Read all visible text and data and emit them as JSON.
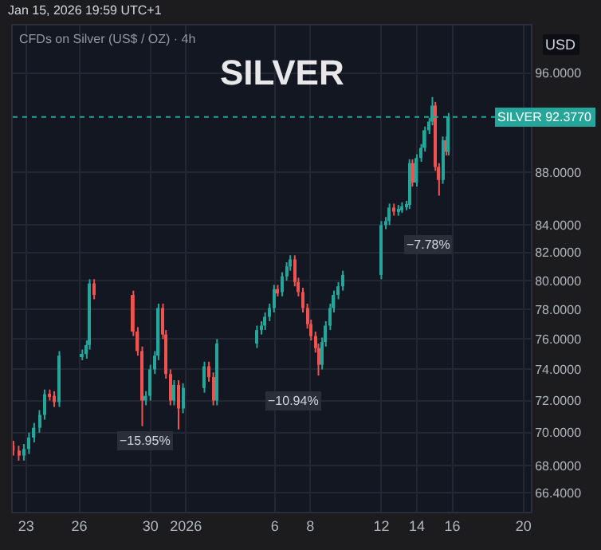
{
  "chart_data": {
    "type": "candlestick",
    "title": "SILVER",
    "subtitle": "CFDs on Silver (US$ / OZ) · 4h",
    "annotations": [
      "Jan 15, 2026 19:59 UTC+1",
      "USD",
      "−15.95%",
      "−10.94%",
      "−7.78%"
    ],
    "x": [
      "2025-12-22T07:00",
      "2025-12-22T14:00",
      "2025-12-22T21:00",
      "2025-12-23T04:00",
      "2025-12-23T11:00",
      "2025-12-23T18:00",
      "2025-12-24T01:00",
      "2025-12-24T08:00",
      "2025-12-24T14:00",
      "2025-12-24T21:00",
      "2025-12-26T04:00",
      "2025-12-26T10:00",
      "2025-12-26T14:00",
      "2025-12-26T20:00",
      "2025-12-29T01:00",
      "2025-12-29T07:00",
      "2025-12-29T13:00",
      "2025-12-29T18:00",
      "2025-12-30T00:00",
      "2025-12-30T06:00",
      "2025-12-30T11:00",
      "2025-12-30T17:00",
      "2025-12-30T21:00",
      "2025-12-31T03:00",
      "2025-12-31T08:00",
      "2025-12-31T14:00",
      "2025-12-31T20:00",
      "2026-01-02T01:00",
      "2026-01-02T07:00",
      "2026-01-02T13:00",
      "2026-01-02T18:00",
      "2026-01-05T00:00",
      "2026-01-05T06:00",
      "2026-01-05T11:00",
      "2026-01-05T17:00",
      "2026-01-05T23:00",
      "2026-01-06T04:00",
      "2026-01-06T10:00",
      "2026-01-06T16:00",
      "2026-01-06T21:00",
      "2026-01-07T03:00",
      "2026-01-07T08:00",
      "2026-01-07T14:00",
      "2026-01-07T20:00",
      "2026-01-08T01:00",
      "2026-01-08T07:00",
      "2026-01-08T11:00",
      "2026-01-08T16:00",
      "2026-01-08T21:00",
      "2026-01-09T03:00",
      "2026-01-09T08:00",
      "2026-01-09T14:00",
      "2026-01-09T20:00",
      "2026-01-12T00:00",
      "2026-01-12T06:00",
      "2026-01-12T11:00",
      "2026-01-12T17:00",
      "2026-01-12T23:00",
      "2026-01-13T04:00",
      "2026-01-13T10:00",
      "2026-01-13T14:00",
      "2026-01-13T18:00",
      "2026-01-14T00:00",
      "2026-01-14T06:00",
      "2026-01-14T11:00",
      "2026-01-14T17:00",
      "2026-01-14T21:00",
      "2026-01-15T01:00",
      "2026-01-15T06:00",
      "2026-01-15T11:00",
      "2026-01-15T16:00",
      "2026-01-15T19:00"
    ],
    "ohlc": [
      [
        69.2,
        69.5,
        68.6,
        68.9
      ],
      [
        68.9,
        69.2,
        68.3,
        68.6
      ],
      [
        68.6,
        69.3,
        68.3,
        69.0
      ],
      [
        69.0,
        70.0,
        68.7,
        69.7
      ],
      [
        69.7,
        70.6,
        69.4,
        70.3
      ],
      [
        70.3,
        71.4,
        70.0,
        71.1
      ],
      [
        71.1,
        72.7,
        70.8,
        72.4
      ],
      [
        72.4,
        72.7,
        72.0,
        72.3
      ],
      [
        72.3,
        72.6,
        71.6,
        71.9
      ],
      [
        71.9,
        75.2,
        71.6,
        74.9
      ],
      [
        74.9,
        75.3,
        74.6,
        75.0
      ],
      [
        75.0,
        75.9,
        74.7,
        75.6
      ],
      [
        75.6,
        80.1,
        75.3,
        79.8
      ],
      [
        79.8,
        80.1,
        78.7,
        79.0
      ],
      [
        79.0,
        79.3,
        76.2,
        76.5
      ],
      [
        76.5,
        76.8,
        74.9,
        75.2
      ],
      [
        75.2,
        75.5,
        70.4,
        72.0
      ],
      [
        72.0,
        72.6,
        71.7,
        72.3
      ],
      [
        72.3,
        74.3,
        72.0,
        74.0
      ],
      [
        74.0,
        75.2,
        73.7,
        74.9
      ],
      [
        74.9,
        78.4,
        74.6,
        78.1
      ],
      [
        78.1,
        78.4,
        76.0,
        76.3
      ],
      [
        76.3,
        76.6,
        73.4,
        73.7
      ],
      [
        73.7,
        74.0,
        71.7,
        72.0
      ],
      [
        72.0,
        73.3,
        71.7,
        73.0
      ],
      [
        73.0,
        73.3,
        70.2,
        71.5
      ],
      [
        71.5,
        73.1,
        71.2,
        72.8
      ],
      [
        72.8,
        74.5,
        72.5,
        74.2
      ],
      [
        74.2,
        74.5,
        73.2,
        73.5
      ],
      [
        73.5,
        73.8,
        71.7,
        72.0
      ],
      [
        72.0,
        76.0,
        71.7,
        75.7
      ],
      [
        75.7,
        76.9,
        75.4,
        76.6
      ],
      [
        76.6,
        77.2,
        76.3,
        76.9
      ],
      [
        76.9,
        77.8,
        76.6,
        77.5
      ],
      [
        77.5,
        78.4,
        77.2,
        78.1
      ],
      [
        78.1,
        79.7,
        77.8,
        79.4
      ],
      [
        79.4,
        79.7,
        78.9,
        79.2
      ],
      [
        79.2,
        80.6,
        78.9,
        80.3
      ],
      [
        80.3,
        81.3,
        80.0,
        81.0
      ],
      [
        81.0,
        81.8,
        80.7,
        81.5
      ],
      [
        81.5,
        81.8,
        79.6,
        79.9
      ],
      [
        79.9,
        80.2,
        78.9,
        79.2
      ],
      [
        79.2,
        79.5,
        77.8,
        78.1
      ],
      [
        78.1,
        78.4,
        76.7,
        77.0
      ],
      [
        77.0,
        77.3,
        75.9,
        76.2
      ],
      [
        76.2,
        76.5,
        75.1,
        75.4
      ],
      [
        75.4,
        75.7,
        73.6,
        74.3
      ],
      [
        74.3,
        76.1,
        74.0,
        75.8
      ],
      [
        75.8,
        77.2,
        75.5,
        76.9
      ],
      [
        76.9,
        78.4,
        76.6,
        78.1
      ],
      [
        78.1,
        79.3,
        77.8,
        79.0
      ],
      [
        79.0,
        79.9,
        78.7,
        79.6
      ],
      [
        79.6,
        80.7,
        79.3,
        80.4
      ],
      [
        80.4,
        84.3,
        80.1,
        84.0
      ],
      [
        84.0,
        84.6,
        83.7,
        84.3
      ],
      [
        84.3,
        85.6,
        84.0,
        85.3
      ],
      [
        85.3,
        85.6,
        84.7,
        85.0
      ],
      [
        85.0,
        85.5,
        84.7,
        85.2
      ],
      [
        85.2,
        85.7,
        84.9,
        85.4
      ],
      [
        85.4,
        85.8,
        85.1,
        85.5
      ],
      [
        85.5,
        89.0,
        85.2,
        88.7
      ],
      [
        88.7,
        89.0,
        86.9,
        87.2
      ],
      [
        87.2,
        89.4,
        86.9,
        89.1
      ],
      [
        89.1,
        90.2,
        88.8,
        89.9
      ],
      [
        89.9,
        91.6,
        89.6,
        91.3
      ],
      [
        91.3,
        92.3,
        91.0,
        92.0
      ],
      [
        92.0,
        94.0,
        91.7,
        93.3
      ],
      [
        93.3,
        93.6,
        88.1,
        88.4
      ],
      [
        88.4,
        88.7,
        86.2,
        87.4
      ],
      [
        87.4,
        90.8,
        87.1,
        90.5
      ],
      [
        90.5,
        90.8,
        89.3,
        89.6
      ],
      [
        89.6,
        92.7,
        89.3,
        92.377
      ]
    ],
    "colors": [
      "#ef5350",
      "#ef5350",
      "#26a69a",
      "#26a69a",
      "#26a69a",
      "#26a69a",
      "#26a69a",
      "#ef5350",
      "#ef5350",
      "#26a69a",
      "#26a69a",
      "#26a69a",
      "#26a69a",
      "#ef5350",
      "#ef5350",
      "#ef5350",
      "#ef5350",
      "#26a69a",
      "#26a69a",
      "#26a69a",
      "#26a69a",
      "#ef5350",
      "#ef5350",
      "#ef5350",
      "#26a69a",
      "#ef5350",
      "#26a69a",
      "#26a69a",
      "#ef5350",
      "#ef5350",
      "#26a69a",
      "#26a69a",
      "#26a69a",
      "#26a69a",
      "#26a69a",
      "#26a69a",
      "#ef5350",
      "#26a69a",
      "#26a69a",
      "#26a69a",
      "#ef5350",
      "#ef5350",
      "#ef5350",
      "#ef5350",
      "#ef5350",
      "#ef5350",
      "#ef5350",
      "#26a69a",
      "#26a69a",
      "#26a69a",
      "#26a69a",
      "#26a69a",
      "#26a69a",
      "#26a69a",
      "#26a69a",
      "#26a69a",
      "#ef5350",
      "#26a69a",
      "#26a69a",
      "#26a69a",
      "#26a69a",
      "#ef5350",
      "#26a69a",
      "#26a69a",
      "#26a69a",
      "#26a69a",
      "#26a69a",
      "#ef5350",
      "#ef5350",
      "#26a69a",
      "#ef5350",
      "#26a69a"
    ],
    "log": true,
    "xlim": [
      "2025-12-22T06:00",
      "2026-01-20T10:00"
    ],
    "xticks": [
      {
        "value": "2025-12-23",
        "label": "23"
      },
      {
        "value": "2025-12-26",
        "label": "26"
      },
      {
        "value": "2025-12-30",
        "label": "30"
      },
      {
        "value": "2026-01-01",
        "label": "2026"
      },
      {
        "value": "2026-01-06",
        "label": "6"
      },
      {
        "value": "2026-01-08",
        "label": "8"
      },
      {
        "value": "2026-01-12",
        "label": "12"
      },
      {
        "value": "2026-01-14",
        "label": "14"
      },
      {
        "value": "2026-01-16",
        "label": "16"
      },
      {
        "value": "2026-01-20",
        "label": "20"
      }
    ],
    "ylim": [
      65.3,
      100.1
    ],
    "yticks": [
      {
        "value": 66.4,
        "label": "66.4000"
      },
      {
        "value": 68,
        "label": "68.0000"
      },
      {
        "value": 70,
        "label": "70.0000"
      },
      {
        "value": 72,
        "label": "72.0000"
      },
      {
        "value": 74,
        "label": "74.0000"
      },
      {
        "value": 76,
        "label": "76.0000"
      },
      {
        "value": 78,
        "label": "78.0000"
      },
      {
        "value": 80,
        "label": "80.0000"
      },
      {
        "value": 82,
        "label": "82.0000"
      },
      {
        "value": 84,
        "label": "84.0000"
      },
      {
        "value": 88,
        "label": "88.0000"
      },
      {
        "value": 96,
        "label": "96.0000"
      }
    ],
    "ref_lines": [
      {
        "axis": "y",
        "value": 92.377,
        "label": "SILVER 92.3770",
        "color": "#26a69a",
        "line_style": "dotted"
      }
    ],
    "grid": true,
    "legend": false
  }
}
